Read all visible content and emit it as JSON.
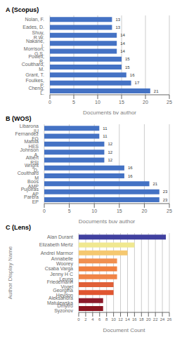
{
  "chart_data": [
    {
      "type": "bar",
      "title": "A (Scopus)",
      "xlabel": "Documents by author",
      "orientation": "horizontal",
      "categories": [
        "Nolan, F.",
        "Eades, D.",
        "Shuy, R.W.",
        "Nakane, I.",
        "Morrison, G.S.",
        "Powell, R.",
        "Coulthard, M.",
        "Grant, T.",
        "Foulkes, P.",
        "Cheng, L."
      ],
      "values": [
        13,
        13,
        14,
        14,
        14,
        15,
        15,
        16,
        17,
        21
      ],
      "color": "#4472C4",
      "xlim": [
        0,
        25
      ],
      "xticks": [
        0,
        5,
        10,
        15,
        20,
        25
      ],
      "grid": true,
      "data_labels": true
    },
    {
      "type": "bar",
      "title": "B (WOS)",
      "xlabel": "Documents buy author",
      "orientation": "horizontal",
      "categories": [
        "Libarona IU",
        "Fernandez FG",
        "Mattila HES",
        "Johnson A.",
        "Albert RSI",
        "Wright D.",
        "Coulthard M",
        "Boos AMP",
        "Pujolras AP",
        "Parera EP"
      ],
      "values": [
        11,
        11,
        12,
        12,
        12,
        16,
        16,
        21,
        23,
        23
      ],
      "color": "#4472C4",
      "xlim": [
        0,
        25
      ],
      "xticks": [
        0,
        5,
        10,
        15,
        20,
        25
      ],
      "grid": true,
      "data_labels": true
    },
    {
      "type": "bar",
      "title": "C (Lens)",
      "xlabel": "Document Count",
      "ylabel": "Author Display Name",
      "orientation": "horizontal",
      "categories": [
        "Alan Durant",
        "Elizabeth Mertz",
        "Andrei Marmor",
        "Annabelle Woorey",
        "Csaba Varga",
        "Jenny H C Leung",
        "Friedemann Vogel",
        "Georgina Heydon",
        "Aleksandra Matulewska",
        "Dmytro Syzonov"
      ],
      "values": [
        25,
        16,
        14,
        11,
        11,
        11,
        10,
        10,
        7,
        7
      ],
      "colors": [
        "#4040A0",
        "#F0E890",
        "#F5C870",
        "#F09050",
        "#F08040",
        "#F08548",
        "#E06038",
        "#E05530",
        "#8B1A2A",
        "#8B1520"
      ],
      "xlim": [
        0,
        26
      ],
      "xticks": [
        0,
        2,
        4,
        6,
        8,
        10,
        12,
        14,
        16,
        18,
        20,
        22,
        24,
        26
      ],
      "grid": true
    }
  ]
}
